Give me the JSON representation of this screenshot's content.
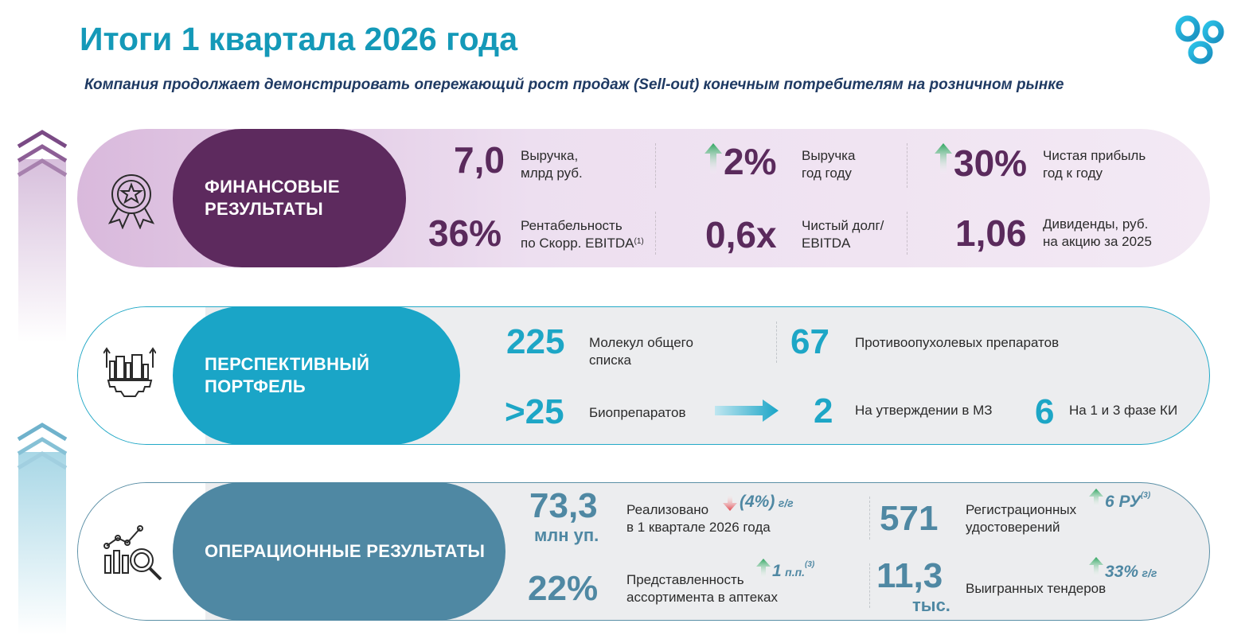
{
  "header": {
    "title": "Итоги 1 квартала 2026 года",
    "subtitle": "Компания продолжает демонстрировать опережающий рост продаж (Sell-out) конечным потребителям на розничном рынке"
  },
  "colors": {
    "title": "#1499b8",
    "financial": "#5d2a5e",
    "portfolio": "#1aa5c7",
    "operations": "#4f88a3",
    "arrow_up": "#2ea55f",
    "arrow_down": "#e0424a"
  },
  "financial": {
    "label": "ФИНАНСОВЫЕ\nРЕЗУЛЬТАТЫ",
    "icon": "award-medal-icon",
    "metrics": [
      {
        "value": "7,0",
        "label": "Выручка,\nмлрд руб."
      },
      {
        "value": "2%",
        "label": "Выручка\nгод году",
        "trend": "up"
      },
      {
        "value": "30%",
        "label": "Чистая прибыль\nгод к году",
        "trend": "up"
      },
      {
        "value": "36%",
        "label": "Рентабельность\nпо Скорр. EBITDA",
        "footnote": "(1)"
      },
      {
        "value": "0,6x",
        "label": "Чистый долг/\nEBITDA"
      },
      {
        "value": "1,06",
        "label": "Дивиденды, руб.\nна акцию за 2025"
      }
    ]
  },
  "portfolio": {
    "label": "ПЕРСПЕКТИВНЫЙ\nПОРТФЕЛЬ",
    "icon": "factory-gear-icon",
    "molecules": {
      "value": "225",
      "label": "Молекул общего\nсписка"
    },
    "oncology": {
      "value": "67",
      "label": "Противоопухолевых препаратов"
    },
    "biologics": {
      "value": ">25",
      "label": "Биопрепаратов"
    },
    "approval": {
      "value": "2",
      "label": "На утверждении в МЗ"
    },
    "trials": {
      "value": "6",
      "label": "На 1 и 3 фазе КИ"
    }
  },
  "operations": {
    "label": "ОПЕРАЦИОННЫЕ РЕЗУЛЬТАТЫ",
    "icon": "analytics-magnifier-icon",
    "sold": {
      "value": "73,3",
      "unit": "млн уп.",
      "label": "Реализовано\nв 1 квартале 2026 года",
      "delta": "(4%)",
      "delta_suffix": "г/г",
      "trend": "down"
    },
    "registrations": {
      "value": "571",
      "label": "Регистрационных\nудостоверений",
      "delta": "6 РУ",
      "delta_note": "(3)",
      "trend": "up"
    },
    "presence": {
      "value": "22%",
      "label": "Представленность\nассортимента в аптеках",
      "delta": "1",
      "delta_suffix": "п.п.",
      "delta_note": "(3)",
      "trend": "up"
    },
    "tenders": {
      "value": "11,3",
      "unit": "тыс.",
      "label": "Выигранных тендеров",
      "delta": "33%",
      "delta_suffix": "г/г",
      "trend": "up"
    }
  }
}
